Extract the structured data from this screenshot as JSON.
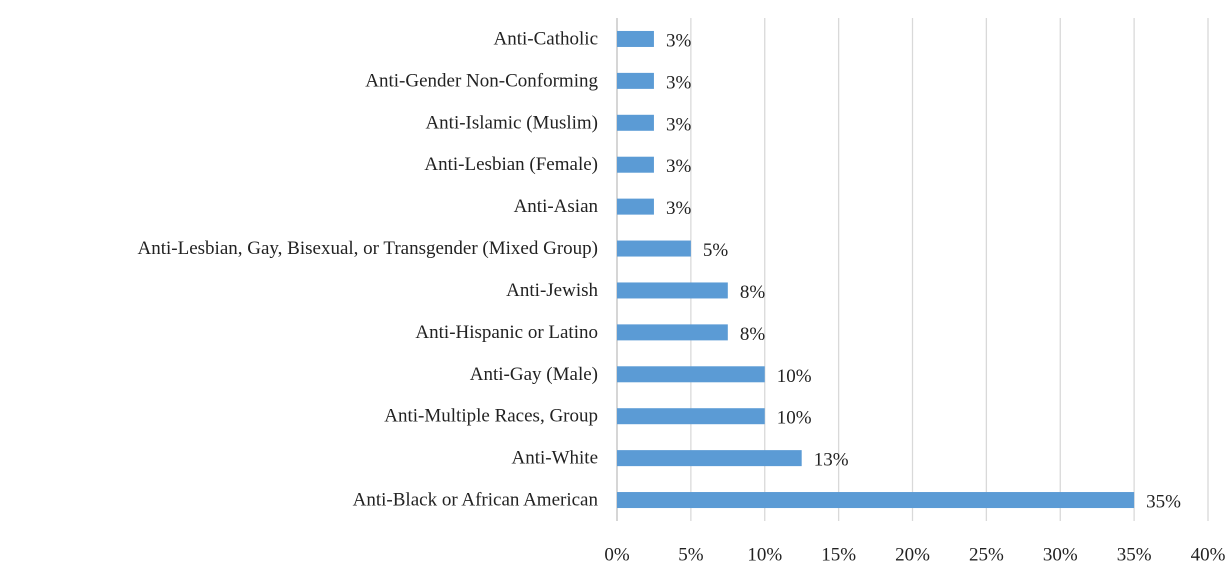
{
  "chart_data": {
    "type": "bar",
    "orientation": "horizontal",
    "title": "",
    "xlabel": "",
    "ylabel": "",
    "xlim": [
      0,
      40
    ],
    "grid": "vertical",
    "legend": "none",
    "categories": [
      "Anti-Catholic",
      "Anti-Gender Non-Conforming",
      "Anti-Islamic (Muslim)",
      "Anti-Lesbian (Female)",
      "Anti-Asian",
      "Anti-Lesbian, Gay, Bisexual, or Transgender (Mixed Group)",
      "Anti-Jewish",
      "Anti-Hispanic or Latino",
      "Anti-Gay (Male)",
      "Anti-Multiple Races, Group",
      "Anti-White",
      "Anti-Black or African American"
    ],
    "values": [
      2.5,
      2.5,
      2.5,
      2.5,
      2.5,
      5,
      7.5,
      7.5,
      10,
      10,
      12.5,
      35
    ],
    "data_labels": [
      "3%",
      "3%",
      "3%",
      "3%",
      "3%",
      "5%",
      "8%",
      "8%",
      "10%",
      "10%",
      "13%",
      "35%"
    ],
    "ticks": [
      "0%",
      "5%",
      "10%",
      "15%",
      "20%",
      "25%",
      "30%",
      "35%",
      "40%"
    ],
    "tick_values": [
      0,
      5,
      10,
      15,
      20,
      25,
      30,
      35,
      40
    ],
    "colors": {
      "bar": "#5b9bd5",
      "grid": "#d9d9d9",
      "axis": "#bfbfbf",
      "text": "#222222"
    }
  }
}
